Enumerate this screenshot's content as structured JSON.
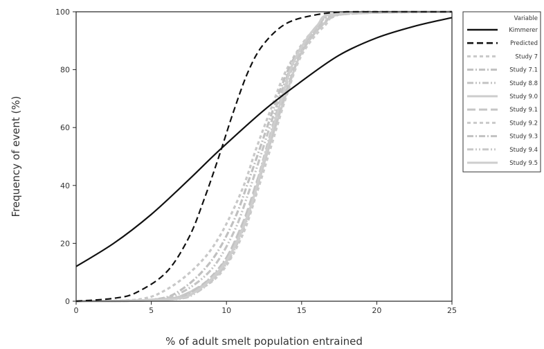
{
  "chart_data": {
    "type": "line",
    "title": "",
    "xlabel": "% of adult smelt population entrained",
    "ylabel": "Frequency of event (%)",
    "xlim": [
      0,
      25
    ],
    "ylim": [
      0,
      100
    ],
    "xticks": [
      0,
      5,
      10,
      15,
      20,
      25
    ],
    "yticks": [
      0,
      20,
      40,
      60,
      80,
      100
    ],
    "xtick_labels": [
      "0",
      "5",
      "10",
      "15",
      "20",
      "25"
    ],
    "ytick_labels": [
      "0",
      "20",
      "40",
      "60",
      "80",
      "100"
    ],
    "grid": false,
    "legend_title": "Variable",
    "legend_position": "right",
    "series": [
      {
        "name": "Kimmerer",
        "color": "#111111",
        "dash": "solid",
        "x": [
          0,
          2.5,
          5,
          7.5,
          9.5,
          12.5,
          15,
          17.5,
          20,
          22.5,
          25
        ],
        "y": [
          12,
          20,
          30,
          42,
          52,
          66,
          76,
          85,
          91,
          95,
          98
        ]
      },
      {
        "name": "Predicted",
        "color": "#111111",
        "dash": "dash",
        "x": [
          0,
          2.5,
          4,
          6,
          7.5,
          8.5,
          9.5,
          10.5,
          11.5,
          12.5,
          14,
          16,
          18,
          20,
          25
        ],
        "y": [
          0,
          1,
          3,
          10,
          22,
          35,
          50,
          66,
          80,
          89,
          96,
          99,
          100,
          100,
          100
        ]
      },
      {
        "name": "Study 7",
        "color": "#c8c8c8",
        "dash": "short-dash",
        "x": [
          0,
          4,
          6,
          8,
          9.5,
          11,
          12,
          13,
          14,
          15.5,
          17,
          19,
          25
        ],
        "y": [
          0,
          0.5,
          4,
          12,
          22,
          38,
          53,
          67,
          80,
          92,
          98,
          100,
          100
        ]
      },
      {
        "name": "Study 7.1",
        "color": "#c0c0c0",
        "dash": "dash-dot",
        "x": [
          0,
          5,
          7,
          9,
          10.5,
          11.5,
          12.5,
          13.5,
          14.5,
          16,
          17.5,
          25
        ],
        "y": [
          0,
          0.5,
          4,
          14,
          28,
          42,
          57,
          72,
          84,
          94,
          99,
          100
        ]
      },
      {
        "name": "Study 8.8",
        "color": "#c4c4c4",
        "dash": "dash-dot-dot",
        "x": [
          0,
          5,
          7,
          9,
          10.5,
          11.5,
          12.5,
          13.5,
          14.5,
          16,
          17.5,
          25
        ],
        "y": [
          0,
          0.5,
          3,
          11,
          24,
          38,
          54,
          70,
          83,
          94,
          99,
          100
        ]
      },
      {
        "name": "Study 9.0",
        "color": "#cccccc",
        "dash": "solid",
        "x": [
          0,
          5.5,
          7.5,
          9.5,
          11,
          12,
          13,
          14,
          15,
          16.5,
          18,
          25
        ],
        "y": [
          0,
          0.5,
          3,
          10,
          24,
          39,
          56,
          72,
          86,
          96,
          99.5,
          100
        ]
      },
      {
        "name": "Study 9.1",
        "color": "#c6c6c6",
        "dash": "long-dash",
        "x": [
          0,
          5.5,
          7.5,
          9.5,
          11,
          12,
          13,
          14,
          15,
          16.5,
          18,
          25
        ],
        "y": [
          0,
          0.5,
          3,
          11,
          26,
          41,
          57,
          73,
          86,
          96,
          99.5,
          100
        ]
      },
      {
        "name": "Study 9.2",
        "color": "#cacaca",
        "dash": "short-dash",
        "x": [
          0,
          5.5,
          7.5,
          9.5,
          11,
          12,
          13,
          14,
          15,
          16.5,
          18,
          25
        ],
        "y": [
          0,
          0.5,
          2.5,
          9,
          22,
          37,
          54,
          71,
          85,
          95,
          99.5,
          100
        ]
      },
      {
        "name": "Study 9.3",
        "color": "#c2c2c2",
        "dash": "dash-dot",
        "x": [
          0,
          6,
          8,
          10,
          11.5,
          12.5,
          13.5,
          14.5,
          16,
          17.5,
          25
        ],
        "y": [
          0,
          0.5,
          4,
          15,
          32,
          50,
          68,
          83,
          95,
          99.5,
          100
        ]
      },
      {
        "name": "Study 9.4",
        "color": "#c8c8c8",
        "dash": "dash-dot-dot",
        "x": [
          0,
          6,
          8,
          10,
          11.5,
          12.5,
          13.5,
          14.5,
          16,
          17.5,
          25
        ],
        "y": [
          0,
          0.5,
          3,
          13,
          30,
          48,
          66,
          82,
          94,
          99.5,
          100
        ]
      },
      {
        "name": "Study 9.5",
        "color": "#cecece",
        "dash": "solid",
        "x": [
          0,
          6,
          8,
          10,
          11.5,
          12.5,
          13.5,
          14.5,
          16,
          17.5,
          25
        ],
        "y": [
          0,
          0.5,
          3.5,
          14,
          31,
          49,
          67,
          83,
          95,
          99.5,
          100
        ]
      }
    ]
  }
}
